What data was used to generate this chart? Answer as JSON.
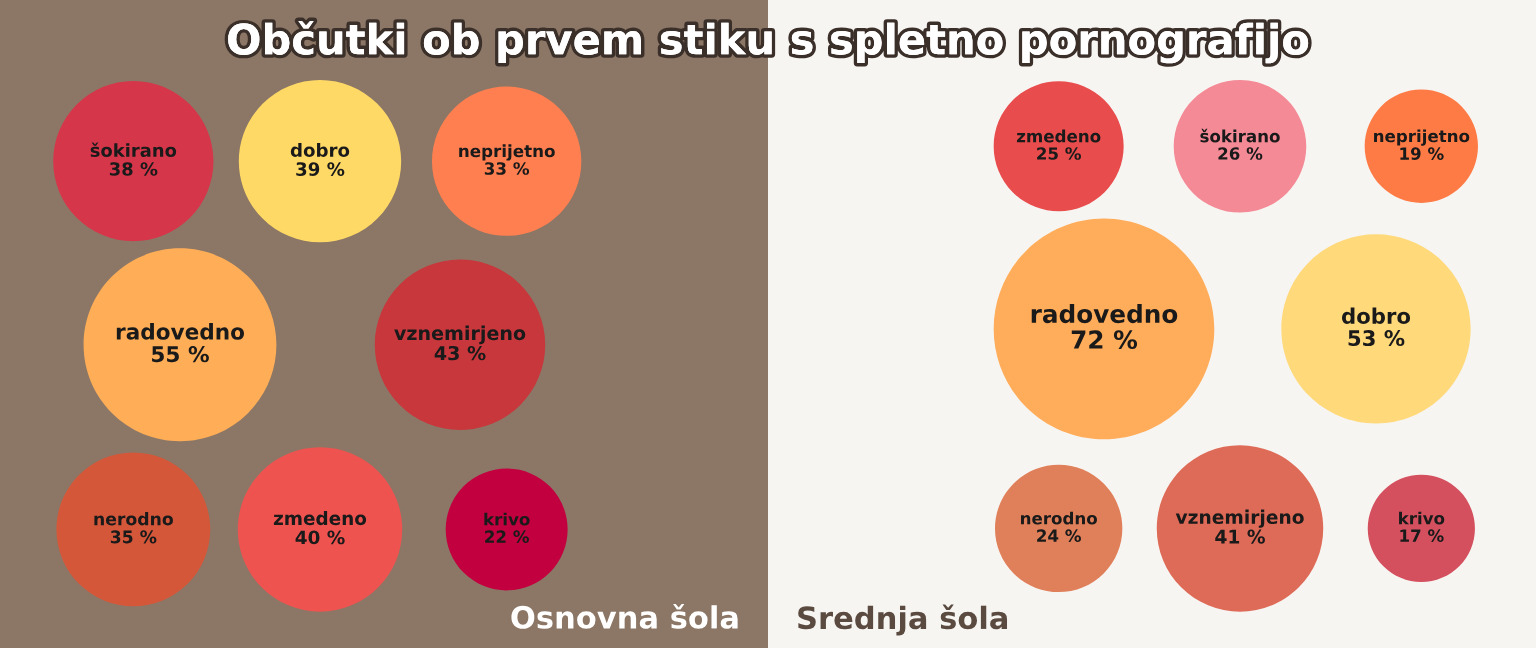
{
  "chart_data": [
    {
      "type": "other",
      "title": "Občutki ob prvem stiku s spletno pornografijo",
      "subtitle": "Osnovna šola",
      "categories": [
        "šokirano",
        "dobro",
        "neprijetno",
        "radovedno",
        "vznemirjeno",
        "nerodno",
        "zmedeno",
        "krivo"
      ],
      "values": [
        38,
        39,
        33,
        55,
        43,
        35,
        40,
        22
      ],
      "value_labels": [
        "38 %",
        "39 %",
        "33 %",
        "55 %",
        "43 %",
        "35 %",
        "40 %",
        "22 %"
      ],
      "colors": [
        "#d6364a",
        "#ffd966",
        "#ff7f50",
        "#ffae57",
        "#c8373c",
        "#d4573a",
        "#ef5350",
        "#c2003f"
      ]
    },
    {
      "type": "other",
      "subtitle": "Srednja šola",
      "categories": [
        "zmedeno",
        "šokirano",
        "neprijetno",
        "radovedno",
        "dobro",
        "nerodno",
        "vznemirjeno",
        "krivo"
      ],
      "values": [
        25,
        26,
        19,
        72,
        53,
        24,
        41,
        17
      ],
      "value_labels": [
        "25 %",
        "26 %",
        "19 %",
        "72 %",
        "53 %",
        "24 %",
        "41 %",
        "17 %"
      ],
      "colors": [
        "#e84c4c",
        "#f48a96",
        "#ff7b45",
        "#ffad5a",
        "#ffd97a",
        "#e0805a",
        "#de6b57",
        "#d4505e"
      ]
    }
  ]
}
